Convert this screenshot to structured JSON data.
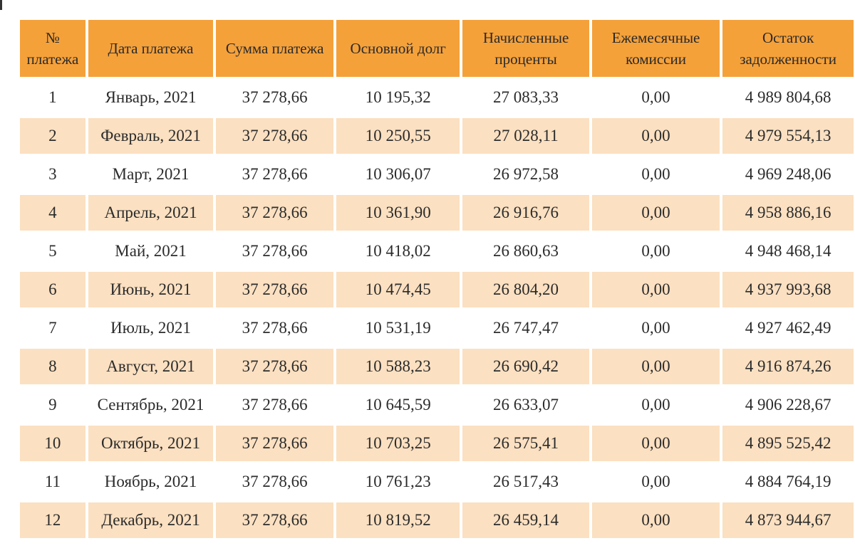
{
  "table": {
    "headers": [
      "№ платежа",
      "Дата платежа",
      "Сумма платежа",
      "Основной долг",
      "Начисленные проценты",
      "Ежемесячные комиссии",
      "Остаток задолженности"
    ],
    "rows": [
      [
        "1",
        "Январь, 2021",
        "37 278,66",
        "10 195,32",
        "27 083,33",
        "0,00",
        "4 989 804,68"
      ],
      [
        "2",
        "Февраль, 2021",
        "37 278,66",
        "10 250,55",
        "27 028,11",
        "0,00",
        "4 979 554,13"
      ],
      [
        "3",
        "Март, 2021",
        "37 278,66",
        "10 306,07",
        "26 972,58",
        "0,00",
        "4 969 248,06"
      ],
      [
        "4",
        "Апрель, 2021",
        "37 278,66",
        "10 361,90",
        "26 916,76",
        "0,00",
        "4 958 886,16"
      ],
      [
        "5",
        "Май, 2021",
        "37 278,66",
        "10 418,02",
        "26 860,63",
        "0,00",
        "4 948 468,14"
      ],
      [
        "6",
        "Июнь, 2021",
        "37 278,66",
        "10 474,45",
        "26 804,20",
        "0,00",
        "4 937 993,68"
      ],
      [
        "7",
        "Июль, 2021",
        "37 278,66",
        "10 531,19",
        "26 747,47",
        "0,00",
        "4 927 462,49"
      ],
      [
        "8",
        "Август, 2021",
        "37 278,66",
        "10 588,23",
        "26 690,42",
        "0,00",
        "4 916 874,26"
      ],
      [
        "9",
        "Сентябрь, 2021",
        "37 278,66",
        "10 645,59",
        "26 633,07",
        "0,00",
        "4 906 228,67"
      ],
      [
        "10",
        "Октябрь, 2021",
        "37 278,66",
        "10 703,25",
        "26 575,41",
        "0,00",
        "4 895 525,42"
      ],
      [
        "11",
        "Ноябрь, 2021",
        "37 278,66",
        "10 761,23",
        "26 517,43",
        "0,00",
        "4 884 764,19"
      ],
      [
        "12",
        "Декабрь, 2021",
        "37 278,66",
        "10 819,52",
        "26 459,14",
        "0,00",
        "4 873 944,67"
      ]
    ]
  },
  "colors": {
    "header_bg": "#f5a13a",
    "stripe_bg": "#fbe0c1",
    "row_bg": "#ffffff",
    "text": "#2b2b2b"
  }
}
